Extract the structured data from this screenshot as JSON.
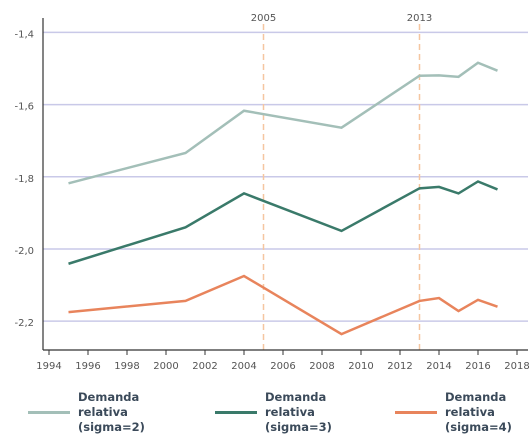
{
  "chart_data": {
    "type": "line",
    "xlim": [
      1994,
      2018
    ],
    "xticks": [
      1994,
      1996,
      1998,
      2000,
      2002,
      2004,
      2006,
      2008,
      2010,
      2012,
      2014,
      2016,
      2018
    ],
    "ylim": [
      -2.28,
      -1.36
    ],
    "yticks": [
      {
        "value": -2.2,
        "label": "-2,2"
      },
      {
        "value": -2.0,
        "label": "-2,0"
      },
      {
        "value": -1.8,
        "label": "-1,8"
      },
      {
        "value": -1.6,
        "label": "-1,6"
      },
      {
        "value": -1.4,
        "label": "-1,4"
      }
    ],
    "grid": true,
    "vlines": [
      2005,
      2013
    ],
    "x": [
      1995,
      2001,
      2004,
      2009,
      2013,
      2014,
      2015,
      2016,
      2017
    ],
    "series": [
      {
        "name": "Demanda relativa (sigma=2)",
        "color": "#a3bfb8",
        "values": [
          -1.818,
          -1.734,
          -1.617,
          -1.664,
          -1.52,
          -1.519,
          -1.523,
          -1.484,
          -1.506
        ]
      },
      {
        "name": "Demanda relativa (sigma=3)",
        "color": "#3a7a6a",
        "values": [
          -2.041,
          -1.94,
          -1.846,
          -1.95,
          -1.832,
          -1.828,
          -1.846,
          -1.813,
          -1.835
        ]
      },
      {
        "name": "Demanda relativa (sigma=4)",
        "color": "#e8845c",
        "values": [
          -2.175,
          -2.144,
          -2.075,
          -2.236,
          -2.144,
          -2.136,
          -2.172,
          -2.141,
          -2.16
        ]
      }
    ]
  }
}
